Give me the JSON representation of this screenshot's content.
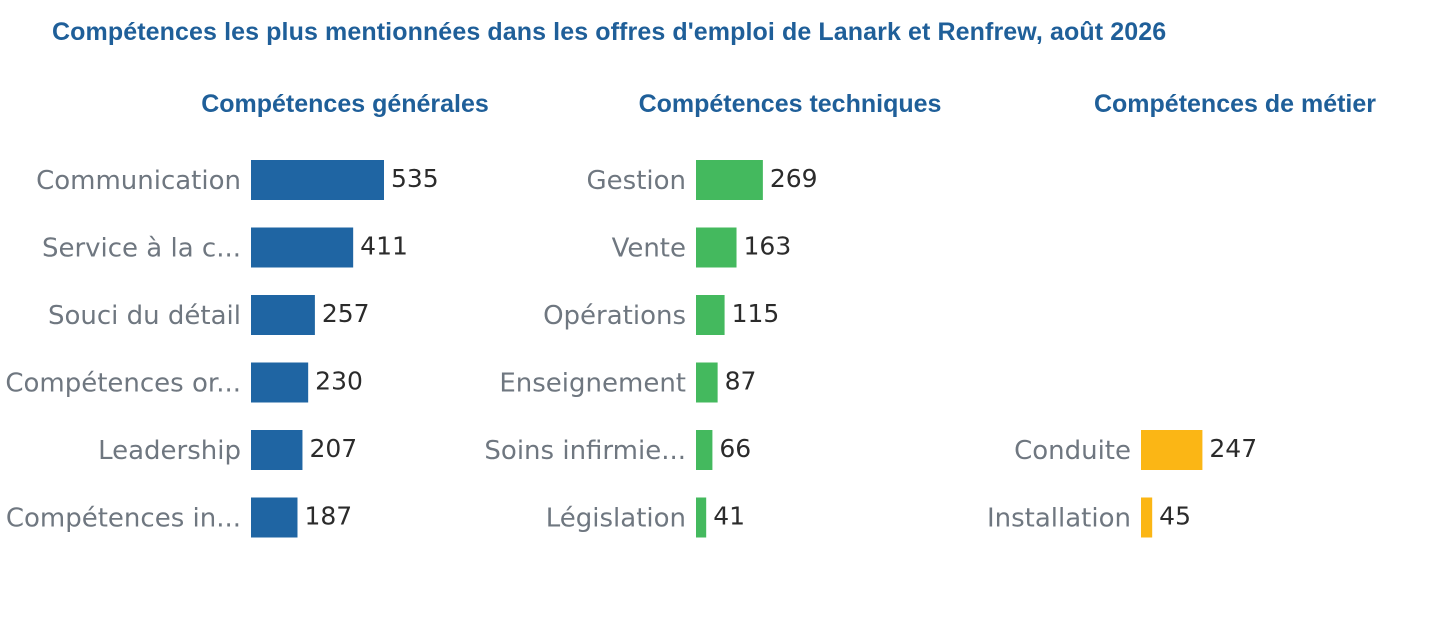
{
  "title": "Compétences les plus mentionnées dans les offres d'emploi de Lanark et Renfrew, août 2026",
  "chart_data": [
    {
      "type": "bar",
      "orientation": "horizontal",
      "title": "Compétences générales",
      "color": "#1f65a3",
      "categories": [
        "Communication",
        "Service à la c...",
        "Souci du détail",
        "Compétences or...",
        "Leadership",
        "Compétences in..."
      ],
      "values": [
        535,
        411,
        257,
        230,
        207,
        187
      ]
    },
    {
      "type": "bar",
      "orientation": "horizontal",
      "title": "Compétences techniques",
      "color": "#44b95e",
      "categories": [
        "Gestion",
        "Vente",
        "Opérations",
        "Enseignement",
        "Soins infirmie...",
        "Législation"
      ],
      "values": [
        269,
        163,
        115,
        87,
        66,
        41
      ]
    },
    {
      "type": "bar",
      "orientation": "horizontal",
      "title": "Compétences de métier",
      "color": "#fbb615",
      "categories": [
        "Conduite",
        "Installation"
      ],
      "values": [
        247,
        45
      ]
    }
  ]
}
